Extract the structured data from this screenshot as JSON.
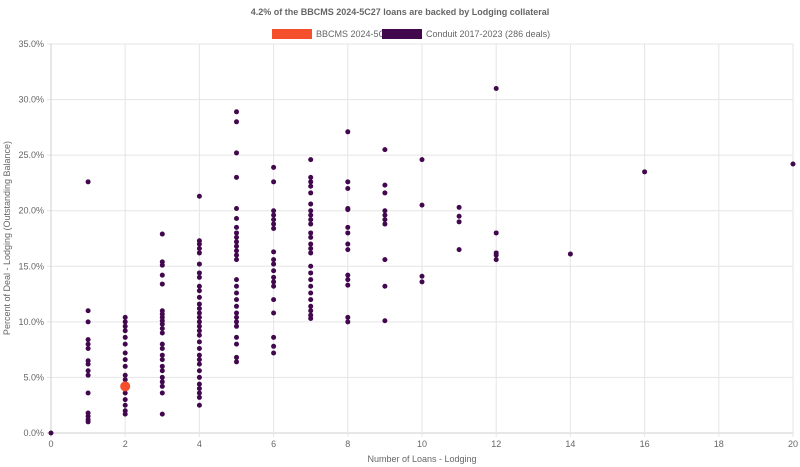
{
  "chart_data": {
    "type": "scatter",
    "title": "4.2% of the BBCMS 2024-5C27 loans are backed by Lodging collateral",
    "xlabel": "Number of Loans - Lodging",
    "ylabel": "Percent of Deal - Lodging (Outstanding Balance)",
    "xlim": [
      0,
      20
    ],
    "ylim": [
      0,
      35
    ],
    "x_ticks": [
      0,
      2,
      4,
      6,
      8,
      10,
      12,
      14,
      16,
      18,
      20
    ],
    "y_ticks": [
      0,
      5,
      10,
      15,
      20,
      25,
      30,
      35
    ],
    "y_tick_format": "percent_1dp",
    "grid": true,
    "legend_position": "top-center",
    "series": [
      {
        "name": "BBCMS 2024-5C27",
        "color": "#f4502e",
        "marker_size": "large",
        "points": [
          [
            2,
            4.2
          ]
        ]
      },
      {
        "name": "Conduit 2017-2023 (286 deals)",
        "color": "#42084e",
        "marker_size": "small",
        "points": [
          [
            0,
            0.0
          ],
          [
            1,
            22.6
          ],
          [
            1,
            11.0
          ],
          [
            1,
            10.0
          ],
          [
            1,
            8.4
          ],
          [
            1,
            8.0
          ],
          [
            1,
            7.6
          ],
          [
            1,
            6.5
          ],
          [
            1,
            6.2
          ],
          [
            1,
            5.6
          ],
          [
            1,
            5.2
          ],
          [
            1,
            3.6
          ],
          [
            1,
            1.8
          ],
          [
            1,
            1.5
          ],
          [
            1,
            1.2
          ],
          [
            1,
            1.0
          ],
          [
            2,
            10.4
          ],
          [
            2,
            10.0
          ],
          [
            2,
            9.6
          ],
          [
            2,
            9.2
          ],
          [
            2,
            8.6
          ],
          [
            2,
            8.0
          ],
          [
            2,
            7.2
          ],
          [
            2,
            6.6
          ],
          [
            2,
            6.0
          ],
          [
            2,
            5.2
          ],
          [
            2,
            4.8
          ],
          [
            2,
            3.6
          ],
          [
            2,
            3.0
          ],
          [
            2,
            2.5
          ],
          [
            2,
            2.0
          ],
          [
            2,
            1.7
          ],
          [
            3,
            17.9
          ],
          [
            3,
            15.4
          ],
          [
            3,
            15.1
          ],
          [
            3,
            14.2
          ],
          [
            3,
            13.4
          ],
          [
            3,
            11.0
          ],
          [
            3,
            10.7
          ],
          [
            3,
            10.4
          ],
          [
            3,
            10.1
          ],
          [
            3,
            9.8
          ],
          [
            3,
            9.4
          ],
          [
            3,
            9.0
          ],
          [
            3,
            8.0
          ],
          [
            3,
            7.6
          ],
          [
            3,
            7.0
          ],
          [
            3,
            6.6
          ],
          [
            3,
            6.0
          ],
          [
            3,
            5.6
          ],
          [
            3,
            5.0
          ],
          [
            3,
            4.6
          ],
          [
            3,
            4.2
          ],
          [
            3,
            3.6
          ],
          [
            3,
            1.7
          ],
          [
            4,
            21.3
          ],
          [
            4,
            17.3
          ],
          [
            4,
            17.0
          ],
          [
            4,
            16.6
          ],
          [
            4,
            16.2
          ],
          [
            4,
            15.2
          ],
          [
            4,
            14.4
          ],
          [
            4,
            14.0
          ],
          [
            4,
            13.2
          ],
          [
            4,
            12.8
          ],
          [
            4,
            12.2
          ],
          [
            4,
            11.6
          ],
          [
            4,
            11.2
          ],
          [
            4,
            10.8
          ],
          [
            4,
            10.4
          ],
          [
            4,
            10.0
          ],
          [
            4,
            9.6
          ],
          [
            4,
            9.2
          ],
          [
            4,
            8.8
          ],
          [
            4,
            8.2
          ],
          [
            4,
            7.6
          ],
          [
            4,
            7.0
          ],
          [
            4,
            6.6
          ],
          [
            4,
            6.2
          ],
          [
            4,
            5.6
          ],
          [
            4,
            5.0
          ],
          [
            4,
            4.4
          ],
          [
            4,
            4.0
          ],
          [
            4,
            3.6
          ],
          [
            4,
            3.2
          ],
          [
            4,
            2.5
          ],
          [
            5,
            28.9
          ],
          [
            5,
            28.0
          ],
          [
            5,
            25.2
          ],
          [
            5,
            23.0
          ],
          [
            5,
            20.2
          ],
          [
            5,
            19.3
          ],
          [
            5,
            18.5
          ],
          [
            5,
            18.0
          ],
          [
            5,
            17.6
          ],
          [
            5,
            17.2
          ],
          [
            5,
            16.8
          ],
          [
            5,
            16.4
          ],
          [
            5,
            16.0
          ],
          [
            5,
            15.6
          ],
          [
            5,
            13.8
          ],
          [
            5,
            13.2
          ],
          [
            5,
            12.6
          ],
          [
            5,
            12.0
          ],
          [
            5,
            11.4
          ],
          [
            5,
            10.8
          ],
          [
            5,
            10.4
          ],
          [
            5,
            10.0
          ],
          [
            5,
            9.6
          ],
          [
            5,
            8.6
          ],
          [
            5,
            8.0
          ],
          [
            5,
            6.8
          ],
          [
            5,
            6.4
          ],
          [
            6,
            23.9
          ],
          [
            6,
            22.6
          ],
          [
            6,
            20.0
          ],
          [
            6,
            19.6
          ],
          [
            6,
            19.2
          ],
          [
            6,
            18.8
          ],
          [
            6,
            18.4
          ],
          [
            6,
            16.3
          ],
          [
            6,
            15.6
          ],
          [
            6,
            15.2
          ],
          [
            6,
            14.6
          ],
          [
            6,
            14.0
          ],
          [
            6,
            13.6
          ],
          [
            6,
            13.2
          ],
          [
            6,
            12.0
          ],
          [
            6,
            10.8
          ],
          [
            6,
            8.6
          ],
          [
            6,
            7.8
          ],
          [
            6,
            7.2
          ],
          [
            7,
            24.6
          ],
          [
            7,
            23.0
          ],
          [
            7,
            22.6
          ],
          [
            7,
            22.2
          ],
          [
            7,
            21.6
          ],
          [
            7,
            20.6
          ],
          [
            7,
            20.0
          ],
          [
            7,
            19.6
          ],
          [
            7,
            19.2
          ],
          [
            7,
            18.8
          ],
          [
            7,
            18.0
          ],
          [
            7,
            17.6
          ],
          [
            7,
            17.0
          ],
          [
            7,
            16.6
          ],
          [
            7,
            16.2
          ],
          [
            7,
            15.0
          ],
          [
            7,
            14.4
          ],
          [
            7,
            13.8
          ],
          [
            7,
            13.2
          ],
          [
            7,
            12.6
          ],
          [
            7,
            12.0
          ],
          [
            7,
            11.4
          ],
          [
            7,
            11.0
          ],
          [
            7,
            10.6
          ],
          [
            7,
            10.3
          ],
          [
            8,
            27.1
          ],
          [
            8,
            22.6
          ],
          [
            8,
            22.0
          ],
          [
            8,
            20.2
          ],
          [
            8,
            20.1
          ],
          [
            8,
            18.5
          ],
          [
            8,
            18.0
          ],
          [
            8,
            17.0
          ],
          [
            8,
            16.5
          ],
          [
            8,
            14.2
          ],
          [
            8,
            13.8
          ],
          [
            8,
            13.3
          ],
          [
            8,
            10.4
          ],
          [
            8,
            10.0
          ],
          [
            9,
            25.5
          ],
          [
            9,
            22.3
          ],
          [
            9,
            21.6
          ],
          [
            9,
            20.0
          ],
          [
            9,
            19.6
          ],
          [
            9,
            19.2
          ],
          [
            9,
            18.8
          ],
          [
            9,
            15.6
          ],
          [
            9,
            13.2
          ],
          [
            9,
            10.1
          ],
          [
            10,
            24.6
          ],
          [
            10,
            20.5
          ],
          [
            10,
            14.1
          ],
          [
            10,
            13.6
          ],
          [
            11,
            20.3
          ],
          [
            11,
            19.5
          ],
          [
            11,
            19.0
          ],
          [
            11,
            16.5
          ],
          [
            12,
            31.0
          ],
          [
            12,
            18.0
          ],
          [
            12,
            16.2
          ],
          [
            12,
            16.0
          ],
          [
            12,
            15.6
          ],
          [
            14,
            16.1
          ],
          [
            16,
            23.5
          ],
          [
            20,
            24.2
          ]
        ]
      }
    ]
  }
}
